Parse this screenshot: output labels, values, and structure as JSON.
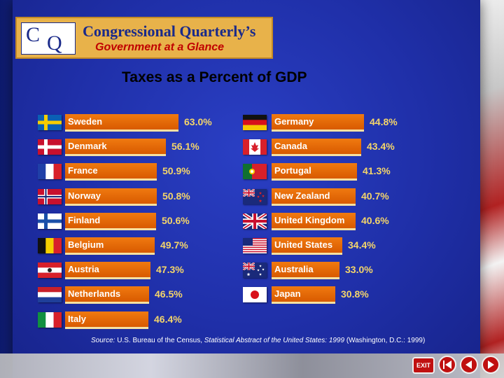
{
  "header": {
    "logo_letters": [
      "C",
      "Q"
    ],
    "logo_name": "Congressional Quarterly’s",
    "logo_subtitle": "Government at a Glance"
  },
  "chart_data": {
    "type": "bar",
    "title": "Taxes as a Percent of GDP",
    "xlabel": "",
    "ylabel": "",
    "unit": "%",
    "columns": [
      {
        "categories": [
          "Sweden",
          "Denmark",
          "France",
          "Norway",
          "Finland",
          "Belgium",
          "Austria",
          "Netherlands",
          "Italy"
        ],
        "values": [
          63.0,
          56.1,
          50.9,
          50.8,
          50.6,
          49.7,
          47.3,
          46.5,
          46.4
        ],
        "labels": [
          "63.0%",
          "56.1%",
          "50.9%",
          "50.8%",
          "50.6%",
          "49.7%",
          "47.3%",
          "46.5%",
          "46.4%"
        ]
      },
      {
        "categories": [
          "Germany",
          "Canada",
          "Portugal",
          "New Zealand",
          "United Kingdom",
          "United States",
          "Australia",
          "Japan"
        ],
        "values": [
          44.8,
          43.4,
          41.3,
          40.7,
          40.6,
          34.4,
          33.0,
          30.8
        ],
        "labels": [
          "44.8%",
          "43.4%",
          "41.3%",
          "40.7%",
          "40.6%",
          "34.4%",
          "33.0%",
          "30.8%"
        ]
      }
    ],
    "source": {
      "prefix": "Source:",
      "text1": " U.S. Bureau of the Census, ",
      "publication": "Statistical Abstract of the United States: 1999",
      "text2": " (Washington, D.C.: 1999)"
    }
  },
  "nav": {
    "exit_label": "EXIT"
  },
  "colors": {
    "bar": "#e06a08",
    "value_text": "#f4d56a",
    "background": "#1f2fa8",
    "nav": "#c01010"
  }
}
